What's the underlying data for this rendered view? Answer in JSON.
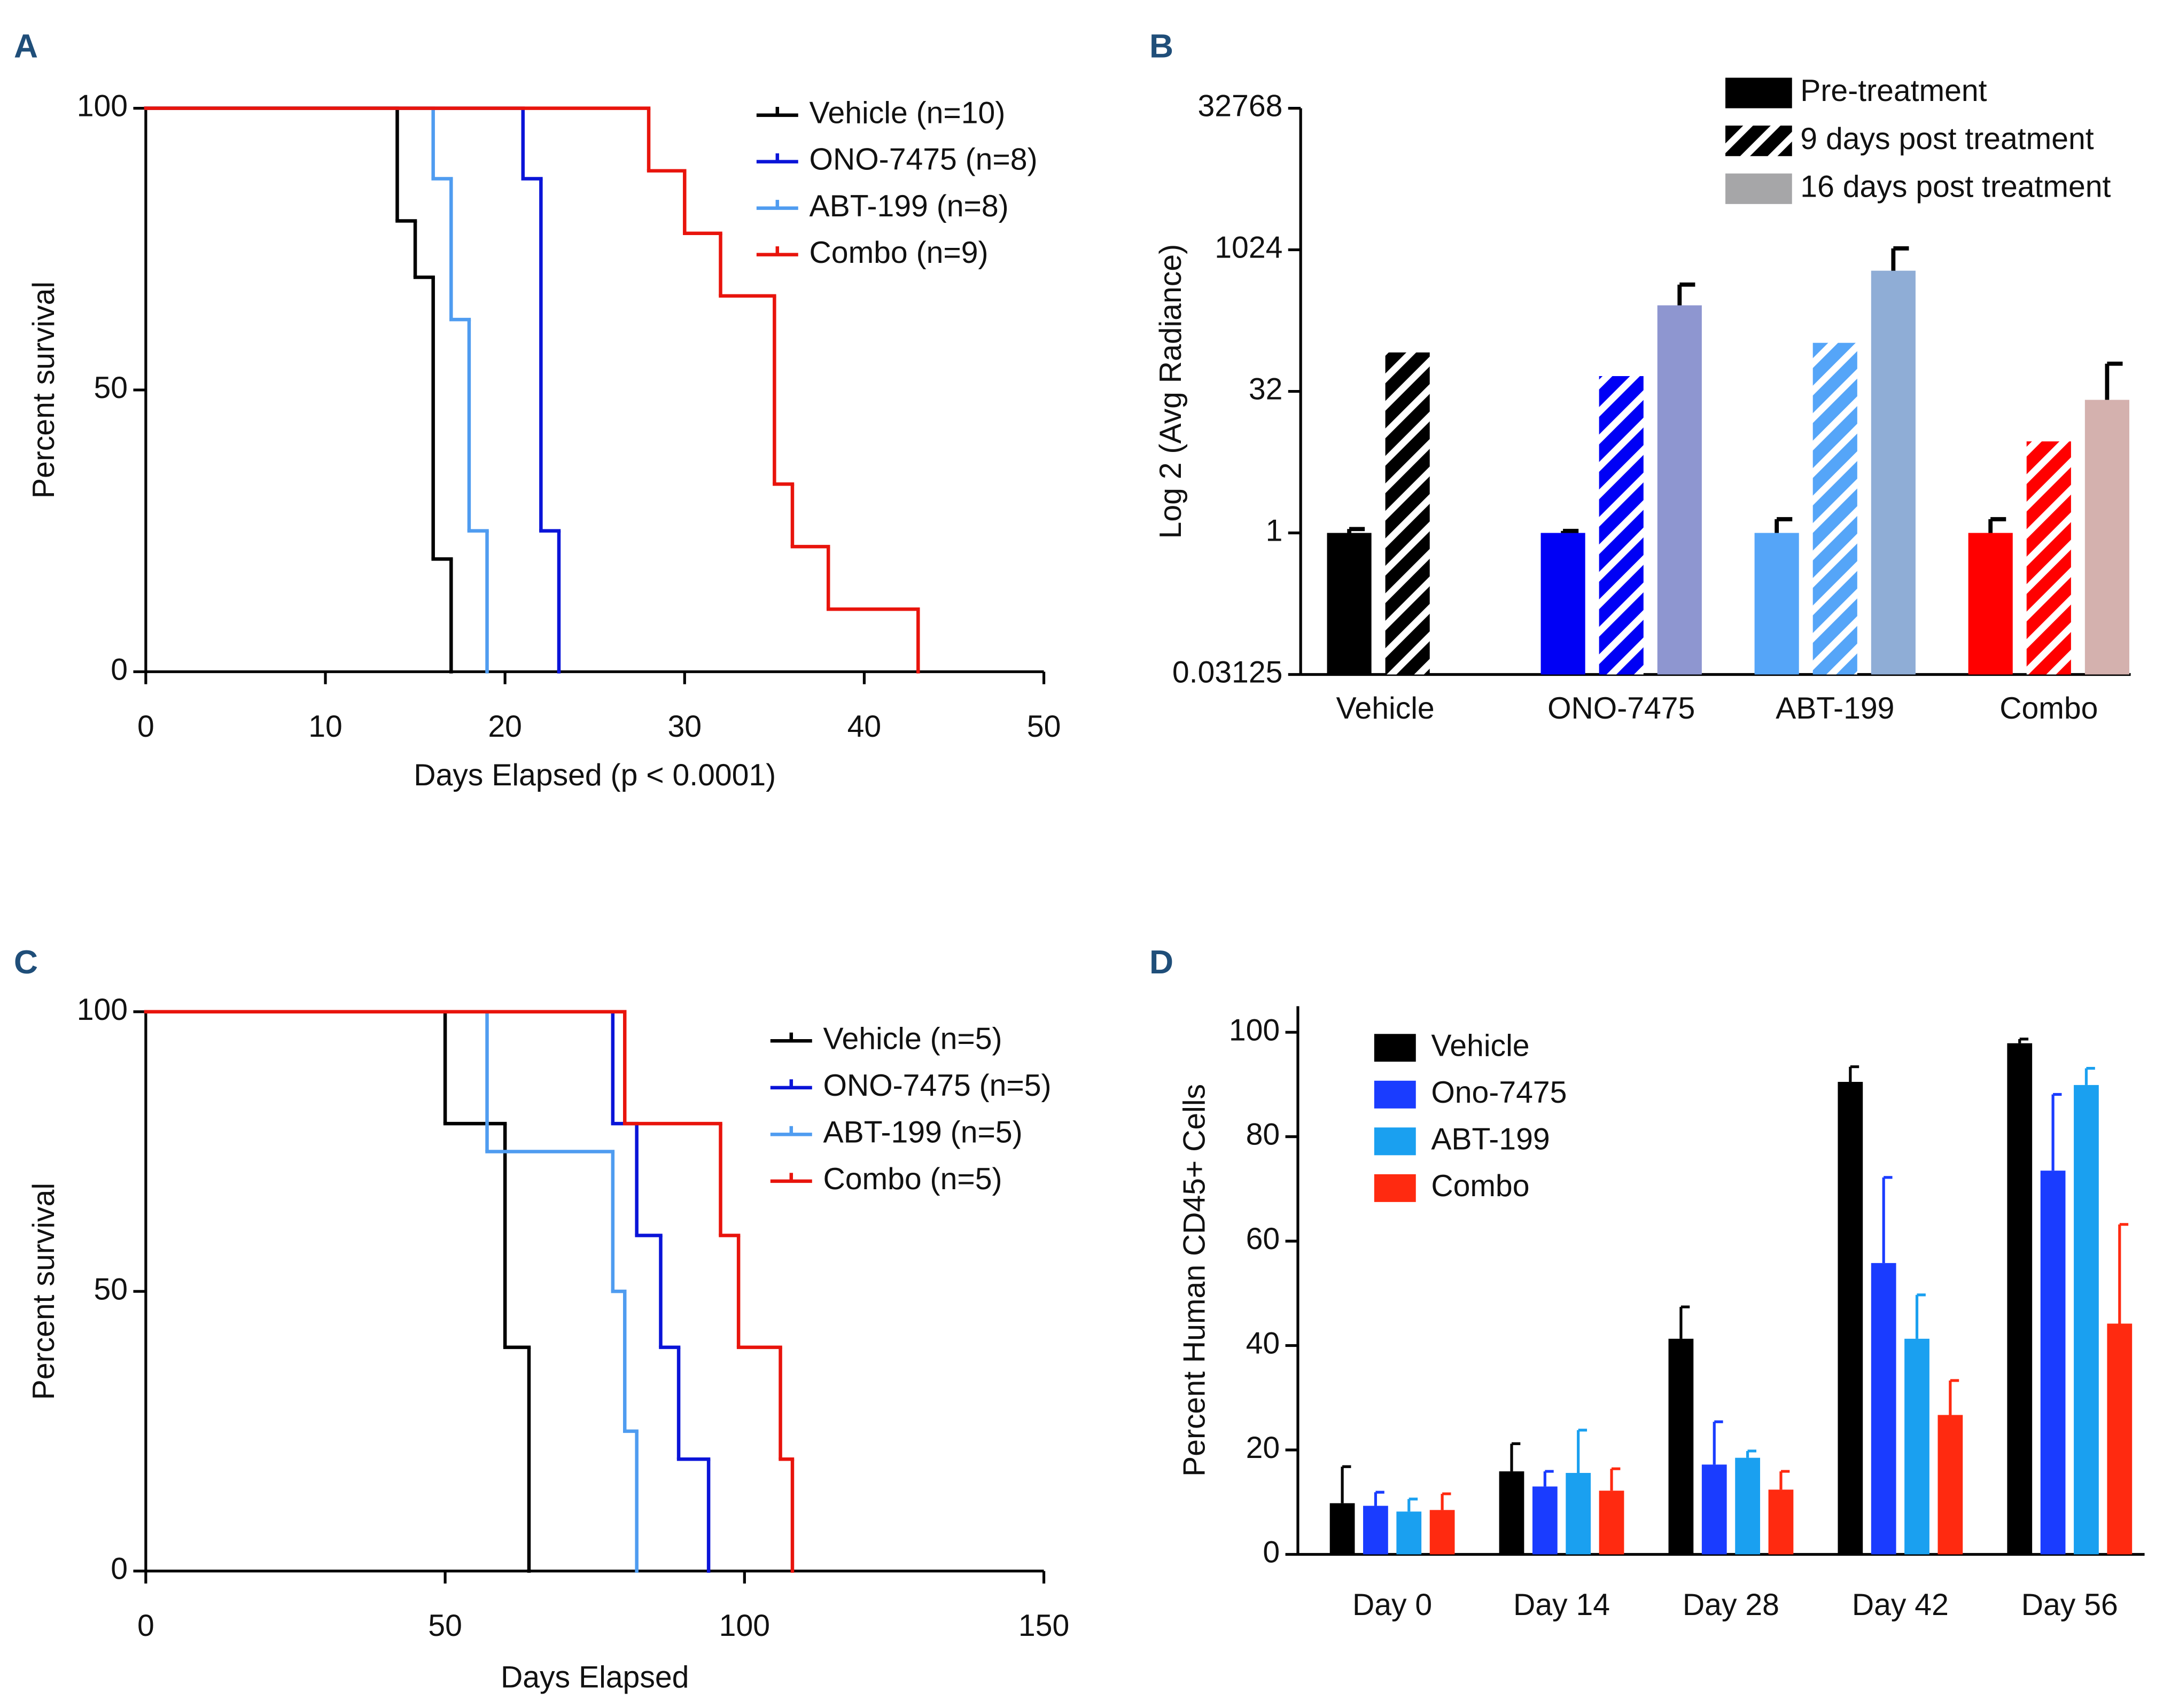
{
  "chart_data": [
    {
      "panel": "A",
      "type": "step",
      "y_label": "Percent survival",
      "x_label": "Days Elapsed (p < 0.0001)",
      "xlim": [
        0,
        50
      ],
      "xticks": [
        0,
        10,
        20,
        30,
        40,
        50
      ],
      "ylim": [
        0,
        100
      ],
      "yticks": [
        0,
        50,
        100
      ],
      "series": [
        {
          "name": "Vehicle (n=10)",
          "color": "#000000",
          "x": [
            0,
            14,
            15,
            16,
            17
          ],
          "values": [
            100,
            80,
            70,
            20,
            0
          ]
        },
        {
          "name": "ONO-7475 (n=8)",
          "color": "#0a14d8",
          "x": [
            0,
            21,
            22,
            23
          ],
          "values": [
            100,
            87.5,
            25,
            0
          ]
        },
        {
          "name": "ABT-199 (n=8)",
          "color": "#4f9cf0",
          "x": [
            0,
            16,
            17,
            18,
            19
          ],
          "values": [
            100,
            87.5,
            62.5,
            25,
            0
          ]
        },
        {
          "name": "Combo (n=9)",
          "color": "#e8140c",
          "x": [
            0,
            28,
            30,
            32,
            35,
            36,
            38,
            43
          ],
          "values": [
            100,
            88.9,
            77.8,
            66.7,
            33.3,
            22.2,
            11.1,
            0
          ]
        }
      ]
    },
    {
      "panel": "B",
      "type": "bar",
      "log_base": 2,
      "y_label": "Log 2 (Avg Radiance)",
      "categories": [
        "Vehicle",
        "ONO-7475",
        "ABT-199",
        "Combo"
      ],
      "ylim": [
        0.03125,
        32768
      ],
      "yticks": [
        0.03125,
        1,
        32,
        1024,
        32768
      ],
      "error_bar_color": "#000000",
      "series": [
        {
          "name": "Pre-treatment",
          "color": "#000000",
          "pattern": "solid",
          "colors": [
            "#000000",
            "#0000f5",
            "#55a5f8",
            "#ff0000"
          ],
          "values": [
            1,
            1,
            1,
            1
          ],
          "errors": [
            0.1,
            0.05,
            0.4,
            0.4
          ]
        },
        {
          "name": "9 days post treatment",
          "color": "#000000",
          "pattern": "hatch",
          "colors": [
            "#000000",
            "#0000f5",
            "#55a5f8",
            "#ff0000"
          ],
          "values": [
            83,
            46.5,
            105,
            9.4
          ]
        },
        {
          "name": "16 days post treatment",
          "color": "#a6a6a8",
          "pattern": "solid",
          "colors": [
            null,
            "#8e96d0",
            "#8fadd6",
            "#d4b1ae"
          ],
          "values": [
            null,
            263,
            614,
            26
          ],
          "errors": [
            null,
            174,
            446,
            37
          ]
        }
      ]
    },
    {
      "panel": "C",
      "type": "step",
      "y_label": "Percent survival",
      "x_label": "Days Elapsed",
      "xlim": [
        0,
        150
      ],
      "xticks": [
        0,
        50,
        100,
        150
      ],
      "ylim": [
        0,
        100
      ],
      "yticks": [
        0,
        50,
        100
      ],
      "series": [
        {
          "name": "Vehicle (n=5)",
          "color": "#000000",
          "x": [
            0,
            50,
            60,
            64
          ],
          "values": [
            100,
            80,
            40,
            0
          ]
        },
        {
          "name": "ONO-7475 (n=5)",
          "color": "#0a14d8",
          "x": [
            0,
            78,
            82,
            86,
            89,
            94
          ],
          "values": [
            100,
            80,
            60,
            40,
            20,
            0
          ]
        },
        {
          "name": "ABT-199 (n=5)",
          "color": "#4f9cf0",
          "x": [
            0,
            57,
            78,
            80,
            82
          ],
          "values": [
            100,
            75,
            50,
            25,
            0
          ]
        },
        {
          "name": "Combo (n=5)",
          "color": "#e8140c",
          "x": [
            0,
            80,
            96,
            99,
            106,
            108
          ],
          "values": [
            100,
            80,
            60,
            40,
            20,
            0
          ]
        }
      ]
    },
    {
      "panel": "D",
      "type": "bar",
      "y_label": "Percent Human CD45+ Cells",
      "categories": [
        "Day 0",
        "Day 14",
        "Day 28",
        "Day 42",
        "Day 56"
      ],
      "ylim": [
        0,
        105
      ],
      "yticks": [
        0,
        20,
        40,
        60,
        80,
        100
      ],
      "series": [
        {
          "name": "Vehicle",
          "color": "#000000",
          "values": [
            9.8,
            15.9,
            41.3,
            90.5,
            97.9
          ],
          "errors": [
            7,
            5.3,
            6.1,
            2.9,
            0.8
          ]
        },
        {
          "name": "Ono-7475",
          "color": "#1a3cff",
          "values": [
            9.3,
            13,
            17.2,
            55.8,
            73.5
          ],
          "errors": [
            2.6,
            2.9,
            8.2,
            16.4,
            14.6
          ]
        },
        {
          "name": "ABT-199",
          "color": "#1aa0f0",
          "values": [
            8.2,
            15.6,
            18.5,
            41.3,
            89.9
          ],
          "errors": [
            2.4,
            8.2,
            1.3,
            8.4,
            3.2
          ]
        },
        {
          "name": "Combo",
          "color": "#ff2a10",
          "values": [
            8.5,
            12.2,
            12.4,
            26.7,
            44.2
          ],
          "errors": [
            3.1,
            4.2,
            3.5,
            6.6,
            19
          ]
        }
      ]
    }
  ]
}
